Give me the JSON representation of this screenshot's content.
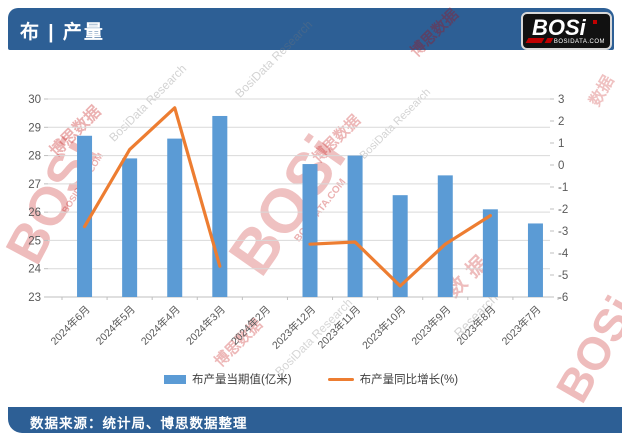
{
  "header": {
    "title": "布 | 产量",
    "logo_text": "BOSi",
    "logo_subtext": "BOSIDATA.COM"
  },
  "footer": {
    "source_text": "数据来源：统计局、博思数据整理"
  },
  "watermarks": {
    "bosi": "BOSi",
    "domain": "BOSIDATA.COM",
    "cn_name": "博思数据",
    "cn_short": "数据",
    "research": "BosiData Research",
    "research_short": "Research"
  },
  "colors": {
    "header_blue": "#2D5F95",
    "bar_blue": "#5B9BD5",
    "line_orange": "#ED7D31",
    "gridline": "#D9D9D9",
    "axis_line": "#BFBFBF",
    "axis_text": "#595959",
    "watermark_red": "#C00000"
  },
  "chart_data": {
    "type": "bar+line",
    "title": "布 | 产量",
    "categories": [
      "2024年6月",
      "2024年5月",
      "2024年4月",
      "2024年3月",
      "2024年2月",
      "2023年12月",
      "2023年11月",
      "2023年10月",
      "2023年9月",
      "2023年8月",
      "2023年7月"
    ],
    "series": [
      {
        "name": "布产量当期值(亿米)",
        "type": "bar",
        "axis": "left",
        "color": "#5B9BD5",
        "values": [
          28.7,
          27.9,
          28.6,
          29.4,
          null,
          27.7,
          28.0,
          26.6,
          27.3,
          26.1,
          25.6
        ]
      },
      {
        "name": "布产量同比增长(%)",
        "type": "line",
        "axis": "right",
        "color": "#ED7D31",
        "values": [
          -2.8,
          0.7,
          2.6,
          -4.6,
          null,
          -3.6,
          -3.5,
          -5.5,
          -3.6,
          -2.3,
          null
        ]
      }
    ],
    "left_axis": {
      "min": 23,
      "max": 30,
      "step": 1
    },
    "right_axis": {
      "min": -6,
      "max": 3,
      "step": 1
    },
    "grid": true,
    "legend_position": "bottom"
  }
}
